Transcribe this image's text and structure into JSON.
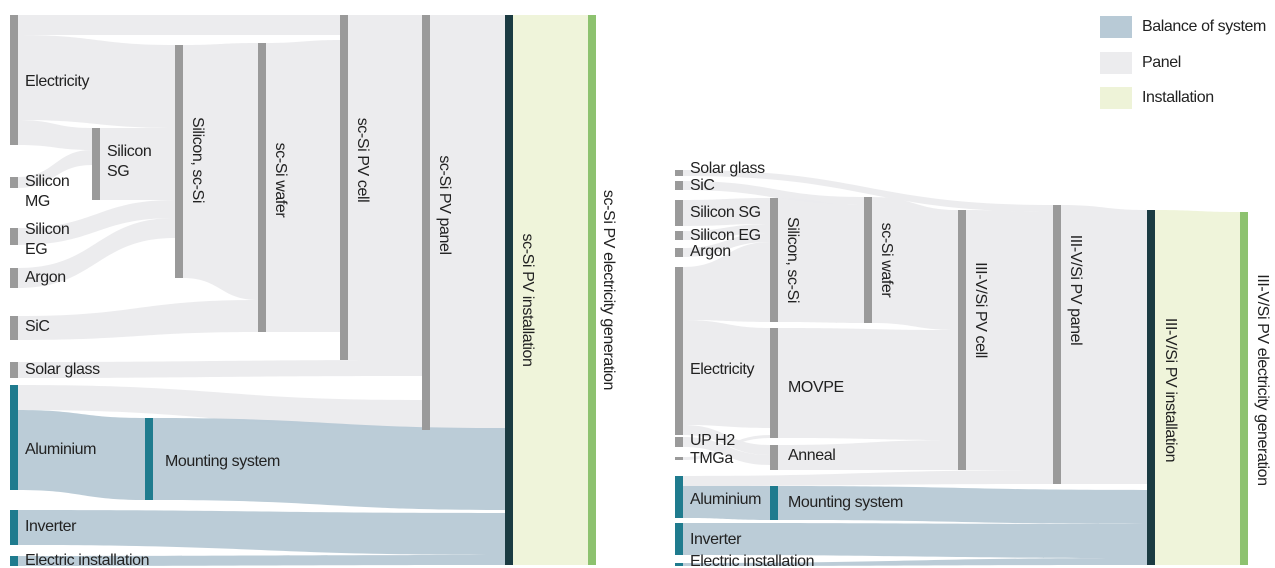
{
  "left": {
    "nodes": [
      {
        "label": "Electricity"
      },
      {
        "lines": [
          "Silicon",
          "MG"
        ]
      },
      {
        "lines": [
          "Silicon",
          "EG"
        ]
      },
      {
        "label": "Argon"
      },
      {
        "label": "SiC"
      },
      {
        "label": "Solar glass"
      },
      {
        "label": "Aluminium"
      },
      {
        "label": "Inverter"
      },
      {
        "label": "Electric installation"
      },
      {
        "lines": [
          "Silicon",
          "SG"
        ]
      },
      {
        "label": "Silicon, sc-Si"
      },
      {
        "label": "sc-Si wafer"
      },
      {
        "label": "sc-Si PV cell"
      },
      {
        "label": "sc-Si PV panel"
      },
      {
        "label": "Mounting system"
      },
      {
        "label": "sc-Si PV installation"
      },
      {
        "label": "sc-Si PV electricity generation"
      }
    ]
  },
  "right": {
    "nodes": [
      {
        "label": "Solar glass"
      },
      {
        "label": "SiC"
      },
      {
        "label": "Silicon SG"
      },
      {
        "label": "Silicon EG"
      },
      {
        "label": "Argon"
      },
      {
        "label": "Electricity"
      },
      {
        "label": "UP H2"
      },
      {
        "label": "TMGa"
      },
      {
        "label": "Aluminium"
      },
      {
        "label": "Inverter"
      },
      {
        "label": "Electric installation"
      },
      {
        "label": "Silicon, sc-Si"
      },
      {
        "label": "MOVPE"
      },
      {
        "label": "Anneal"
      },
      {
        "label": "Mounting system"
      },
      {
        "label": "sc-Si wafer"
      },
      {
        "label": "III-V/Si PV cell"
      },
      {
        "label": "III-V/Si PV panel"
      },
      {
        "label": "III-V/Si PV installation"
      },
      {
        "label": "III-V/Si PV electricity generation"
      }
    ]
  },
  "legend": [
    {
      "label": "Balance of system"
    },
    {
      "label": "Panel"
    },
    {
      "label": "Installation"
    }
  ]
}
